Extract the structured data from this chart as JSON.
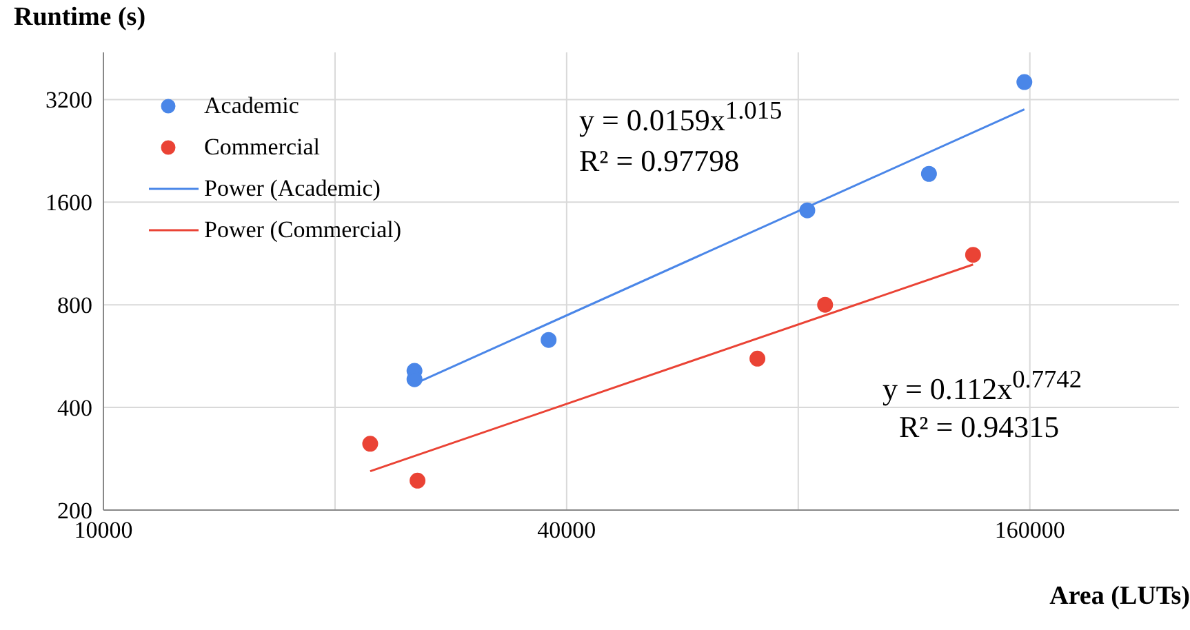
{
  "chart_data": {
    "type": "scatter",
    "xlabel": "Area (LUTs)",
    "ylabel": "Runtime (s)",
    "log": "xy",
    "grid": true,
    "legend": "top left",
    "xlim": [
      10000,
      250000
    ],
    "xticks": [
      10000,
      {
        "value": 20000,
        "label": null
      },
      40000,
      {
        "value": 80000,
        "label": null
      },
      160000
    ],
    "ylim": [
      200,
      4400
    ],
    "yticks": [
      200,
      400,
      800,
      1600,
      3200
    ],
    "series": [
      {
        "name": "Academic",
        "marker": "circle",
        "color": "#4a86e8",
        "x": [
          25370,
          25370,
          37900,
          82200,
          118300,
          157400
        ],
        "values": [
          512,
          484,
          631,
          1514,
          1937,
          3600
        ]
      },
      {
        "name": "Commercial",
        "marker": "circle",
        "color": "#ea4335",
        "x": [
          22220,
          25600,
          70800,
          86700,
          135000
        ],
        "values": [
          313,
          244,
          556,
          800,
          1121
        ]
      },
      {
        "name": "Power (Academic)",
        "type": "line",
        "marker": "none",
        "color": "#4a86e8",
        "x": [
          25370,
          157400
        ],
        "values": [
          469,
          2995
        ]
      },
      {
        "name": "Power (Commercial)",
        "type": "line",
        "marker": "none",
        "color": "#ea4335",
        "x": [
          22220,
          135000
        ],
        "values": [
          260,
          1050
        ]
      }
    ],
    "annotations": [
      "y = 0.0159x$^{1.015}$",
      "R² = 0.97798",
      "y = 0.112x$^{0.7742}$",
      "R² = 0.94315"
    ]
  }
}
